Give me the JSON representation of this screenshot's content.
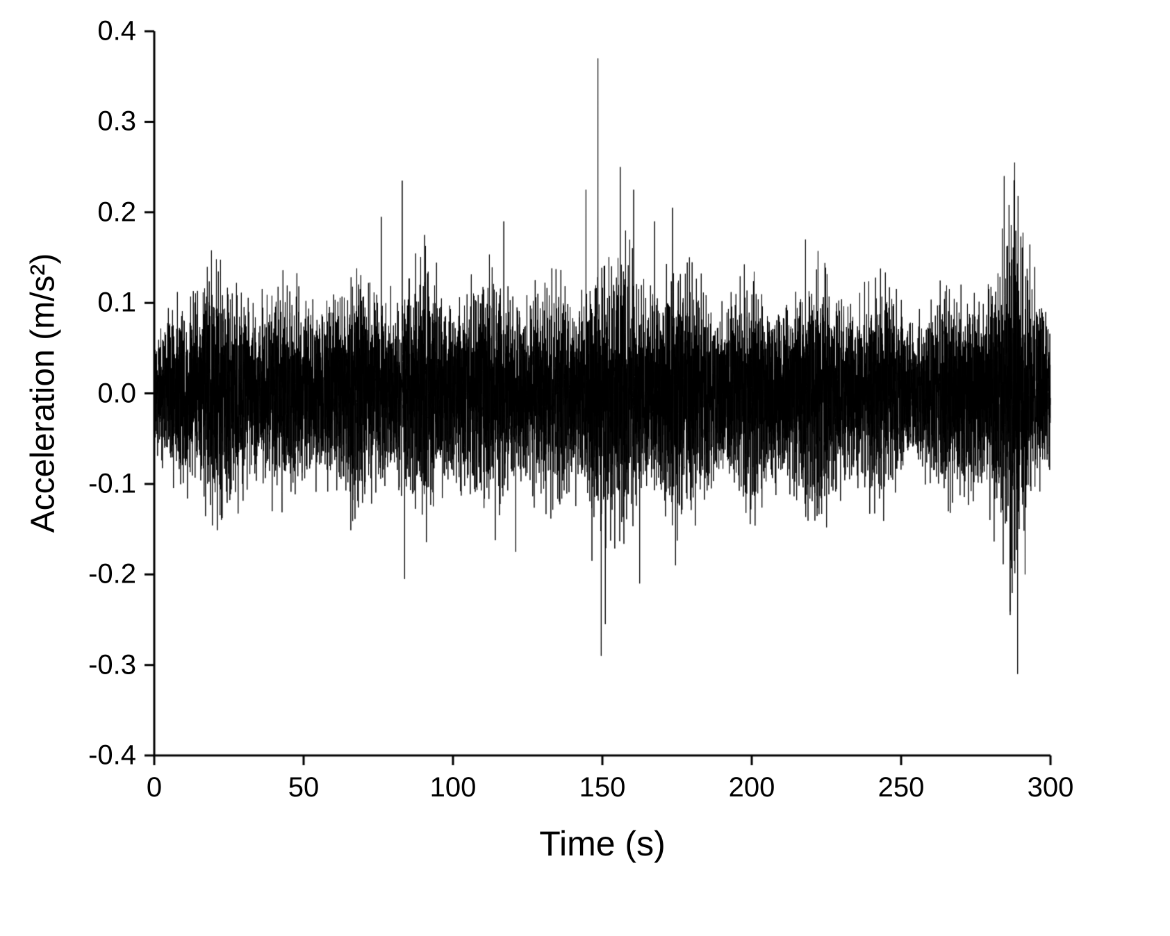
{
  "chart_data": {
    "type": "line",
    "title": "",
    "xlabel": "Time (s)",
    "ylabel": "Acceleration (m/s²)",
    "xlim": [
      0,
      300
    ],
    "ylim": [
      -0.4,
      0.4
    ],
    "grid": false,
    "legend": "none",
    "line_color": "#000000",
    "background": "#ffffff",
    "x_ticks": {
      "values": [
        0,
        50,
        100,
        150,
        200,
        250,
        300
      ],
      "labels": [
        "0",
        "50",
        "100",
        "150",
        "200",
        "250",
        "300"
      ]
    },
    "y_ticks": {
      "values": [
        -0.4,
        -0.3,
        -0.2,
        -0.1,
        0.0,
        0.1,
        0.2,
        0.3,
        0.4
      ],
      "labels": [
        "-0.4",
        "-0.3",
        "-0.2",
        "-0.1",
        "0.0",
        "0.1",
        "0.2",
        "0.3",
        "0.4"
      ]
    },
    "series_name": "acceleration",
    "signal_description": "dense broadband vibration signal, roughly zero-mean, amplitude mostly within ±0.15 m/s², with isolated larger bursts near t≈83 s, t≈145–175 s and t≈283–292 s",
    "signal_envelope": {
      "t": [
        0,
        2,
        8,
        15,
        25,
        35,
        45,
        55,
        65,
        72,
        78,
        85,
        92,
        100,
        108,
        115,
        122,
        130,
        138,
        144,
        148,
        152,
        158,
        165,
        172,
        178,
        185,
        195,
        205,
        215,
        225,
        235,
        245,
        255,
        265,
        272,
        278,
        283,
        287,
        291,
        295,
        300
      ],
      "amp": [
        0.055,
        0.08,
        0.15,
        0.16,
        0.155,
        0.14,
        0.135,
        0.14,
        0.15,
        0.16,
        0.155,
        0.16,
        0.165,
        0.15,
        0.14,
        0.175,
        0.15,
        0.14,
        0.135,
        0.165,
        0.2,
        0.18,
        0.19,
        0.17,
        0.175,
        0.16,
        0.15,
        0.14,
        0.15,
        0.15,
        0.16,
        0.15,
        0.14,
        0.13,
        0.13,
        0.14,
        0.17,
        0.215,
        0.245,
        0.195,
        0.16,
        0.15
      ]
    },
    "spikes": [
      {
        "t": 76.0,
        "amp": 0.195
      },
      {
        "t": 83.0,
        "amp": 0.235
      },
      {
        "t": 83.8,
        "amp": -0.205
      },
      {
        "t": 90.5,
        "amp": 0.175
      },
      {
        "t": 117.0,
        "amp": 0.19
      },
      {
        "t": 121.0,
        "amp": -0.175
      },
      {
        "t": 144.5,
        "amp": 0.225
      },
      {
        "t": 146.5,
        "amp": -0.185
      },
      {
        "t": 148.5,
        "amp": 0.37
      },
      {
        "t": 149.6,
        "amp": -0.29
      },
      {
        "t": 151.0,
        "amp": -0.255
      },
      {
        "t": 156.0,
        "amp": 0.25
      },
      {
        "t": 160.5,
        "amp": 0.225
      },
      {
        "t": 162.5,
        "amp": -0.21
      },
      {
        "t": 167.5,
        "amp": 0.19
      },
      {
        "t": 173.5,
        "amp": 0.205
      },
      {
        "t": 174.5,
        "amp": -0.19
      },
      {
        "t": 218.0,
        "amp": 0.17
      },
      {
        "t": 284.5,
        "amp": 0.24
      },
      {
        "t": 286.5,
        "amp": -0.245
      },
      {
        "t": 288.0,
        "amp": 0.255
      },
      {
        "t": 289.0,
        "amp": -0.31
      },
      {
        "t": 291.5,
        "amp": -0.2
      }
    ]
  }
}
